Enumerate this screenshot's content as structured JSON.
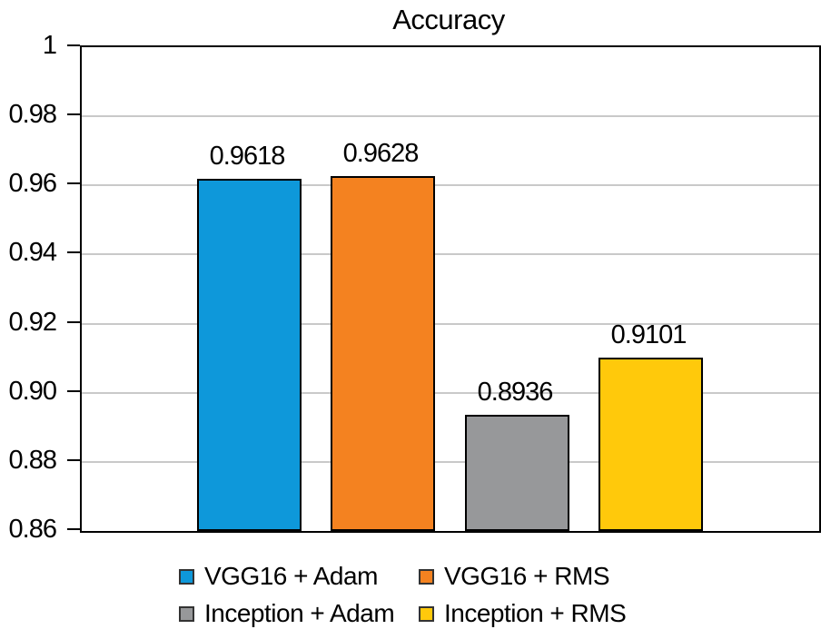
{
  "chart_data": {
    "type": "bar",
    "title": "Accuracy",
    "categories": [
      "VGG16 + Adam",
      "VGG16 + RMS",
      "Inception + Adam",
      "Inception + RMS"
    ],
    "values": [
      0.9618,
      0.9628,
      0.8936,
      0.9101
    ],
    "value_labels": [
      "0.9618",
      "0.9628",
      "0.8936",
      "0.9101"
    ],
    "bar_colors": [
      "#0E98DA",
      "#F48220",
      "#97989A",
      "#FFC90B"
    ],
    "xlabel": "",
    "ylabel": "",
    "ylim": [
      0.86,
      1.0
    ],
    "yticks": [
      1,
      0.98,
      0.96,
      0.94,
      0.92,
      0.9,
      0.88,
      0.86
    ],
    "ytick_labels": [
      "1",
      "0.98",
      "0.96",
      "0.94",
      "0.92",
      "0.90",
      "0.88",
      "0.86"
    ],
    "grid": true,
    "legend_position": "bottom",
    "legend": [
      {
        "label": "VGG16 + Adam",
        "color": "#0E98DA"
      },
      {
        "label": "VGG16 + RMS",
        "color": "#F48220"
      },
      {
        "label": "Inception + Adam",
        "color": "#97989A"
      },
      {
        "label": "Inception + RMS",
        "color": "#FFC90B"
      }
    ]
  },
  "colors": {
    "background": "#FFFFFF",
    "axis": "#000000",
    "grid": "#C9C9C9",
    "bar_border": "#000000",
    "text": "#000000",
    "legend_swatch_border": "#333333"
  }
}
